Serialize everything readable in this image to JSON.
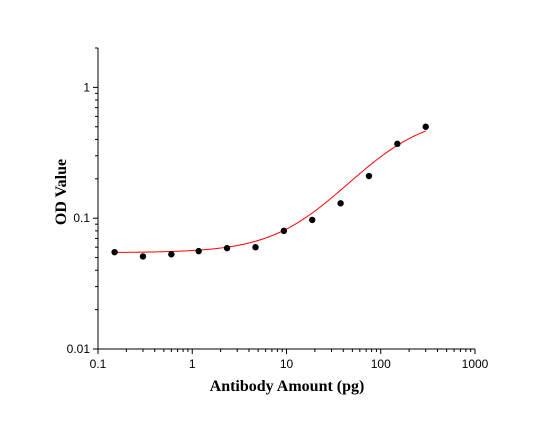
{
  "chart_data": {
    "type": "scatter",
    "xlabel": "Antibody Amount (pg)",
    "ylabel": "OD Value",
    "x_scale": "log",
    "y_scale": "log",
    "xlim": [
      0.1,
      1000
    ],
    "ylim": [
      0.01,
      2
    ],
    "x_ticks": [
      "0.1",
      "1",
      "10",
      "100",
      "1000"
    ],
    "y_ticks": [
      "0.01",
      "0.1",
      "1"
    ],
    "grid": false,
    "series": [
      {
        "points": [
          [
            0.15,
            0.055
          ],
          [
            0.3,
            0.051
          ],
          [
            0.6,
            0.053
          ],
          [
            1.17,
            0.056
          ],
          [
            2.34,
            0.059
          ],
          [
            4.69,
            0.06
          ],
          [
            9.38,
            0.08
          ],
          [
            18.75,
            0.097
          ],
          [
            37.5,
            0.13
          ],
          [
            75,
            0.21
          ],
          [
            150,
            0.37
          ],
          [
            300,
            0.5
          ]
        ],
        "marker_color": "#000000"
      }
    ],
    "fit_curve": {
      "color": "#ff0000",
      "model": "4PL",
      "bottom": 0.0545,
      "top": 0.62,
      "ec50": 130,
      "hill": 1.15,
      "x_range": [
        0.15,
        300
      ]
    }
  }
}
